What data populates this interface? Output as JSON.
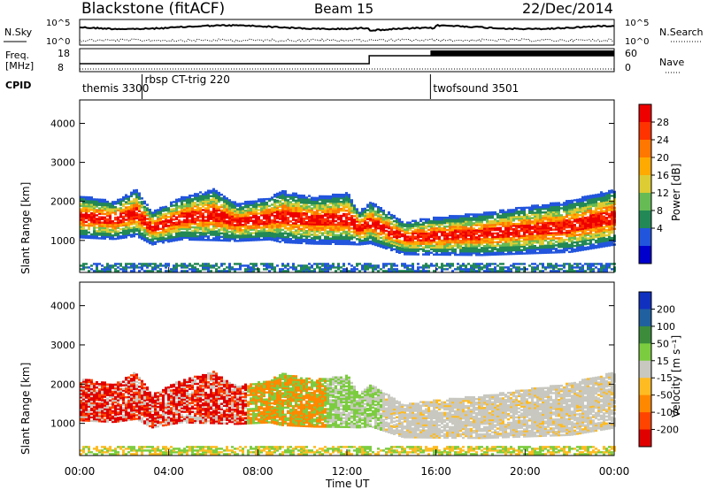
{
  "header": {
    "station": "Blackstone (fitACF)",
    "beam": "Beam 15",
    "date": "22/Dec/2014"
  },
  "panels": {
    "left_labels": {
      "nsky": "N.Sky",
      "freq_line1": "Freq.",
      "freq_line2": "[MHz]",
      "cpid": "CPID"
    },
    "right_labels": {
      "nsearch": "N.Search",
      "nave": "Nave"
    },
    "nsky_ticks": [
      "10^5",
      "10^0"
    ],
    "nsearch_ticks": [
      "10^5",
      "10^0"
    ],
    "freq_ticks": [
      "18",
      "8"
    ],
    "nave_ticks": [
      "60",
      "0"
    ],
    "cpid_entries": [
      {
        "label": "themis 3300",
        "t": 0.0
      },
      {
        "label": "rbsp CT-trig 220",
        "t": 2.8
      },
      {
        "label": "twofsound 3501",
        "t": 15.75
      }
    ],
    "freq_step_time": 13.0,
    "nave_step_time": 15.75
  },
  "power_colorbar": {
    "title": "Power [dB]",
    "ticks": [
      "28",
      "24",
      "20",
      "16",
      "12",
      "8",
      "4"
    ],
    "colors": [
      "#ee0000",
      "#ff3300",
      "#ff7700",
      "#ffaa00",
      "#ddcc33",
      "#66bb55",
      "#228855",
      "#2255dd",
      "#0000cc"
    ]
  },
  "velocity_colorbar": {
    "title": "Velocity [m s⁻¹]",
    "ticks": [
      "200",
      "100",
      "50",
      "15",
      "-15",
      "-50",
      "-100",
      "-200"
    ],
    "colors": [
      "#1030c0",
      "#2060a0",
      "#3c8c3c",
      "#7ccc40",
      "#c8c8c0",
      "#ffbb22",
      "#ff8800",
      "#ff4400",
      "#e00000"
    ]
  },
  "chart_data": [
    {
      "type": "heatmap",
      "name": "Power",
      "ylabel": "Slant Range [km]",
      "xlabel": "Time UT",
      "x_range": [
        0,
        24
      ],
      "y_range": [
        180,
        4600
      ],
      "y_ticks": [
        "4000",
        "3000",
        "2000",
        "1000"
      ],
      "x_ticks": [
        "00:00",
        "04:00",
        "08:00",
        "12:00",
        "16:00",
        "20:00",
        "00:00"
      ],
      "band": {
        "t": [
          0,
          1.5,
          2.5,
          3.2,
          4.5,
          6.0,
          7.0,
          8.5,
          9.0,
          10.5,
          12.0,
          12.5,
          13.0,
          14.5,
          16.0,
          18.0,
          20.0,
          22.0,
          24.0
        ],
        "center_km": [
          1600,
          1500,
          1700,
          1300,
          1550,
          1650,
          1450,
          1550,
          1600,
          1500,
          1550,
          1300,
          1450,
          1050,
          1100,
          1150,
          1250,
          1350,
          1600
        ],
        "width_km": [
          900,
          800,
          1000,
          700,
          900,
          1100,
          800,
          900,
          1100,
          1000,
          1100,
          700,
          900,
          700,
          800,
          900,
          1000,
          1100,
          1200
        ]
      }
    },
    {
      "type": "heatmap",
      "name": "Velocity",
      "ylabel": "Slant Range [km]",
      "xlabel": "Time UT",
      "x_range": [
        0,
        24
      ],
      "y_range": [
        180,
        4600
      ],
      "y_ticks": [
        "4000",
        "3000",
        "2000",
        "1000"
      ],
      "x_ticks": [
        "00:00",
        "04:00",
        "08:00",
        "12:00",
        "16:00",
        "20:00",
        "00:00"
      ]
    }
  ]
}
